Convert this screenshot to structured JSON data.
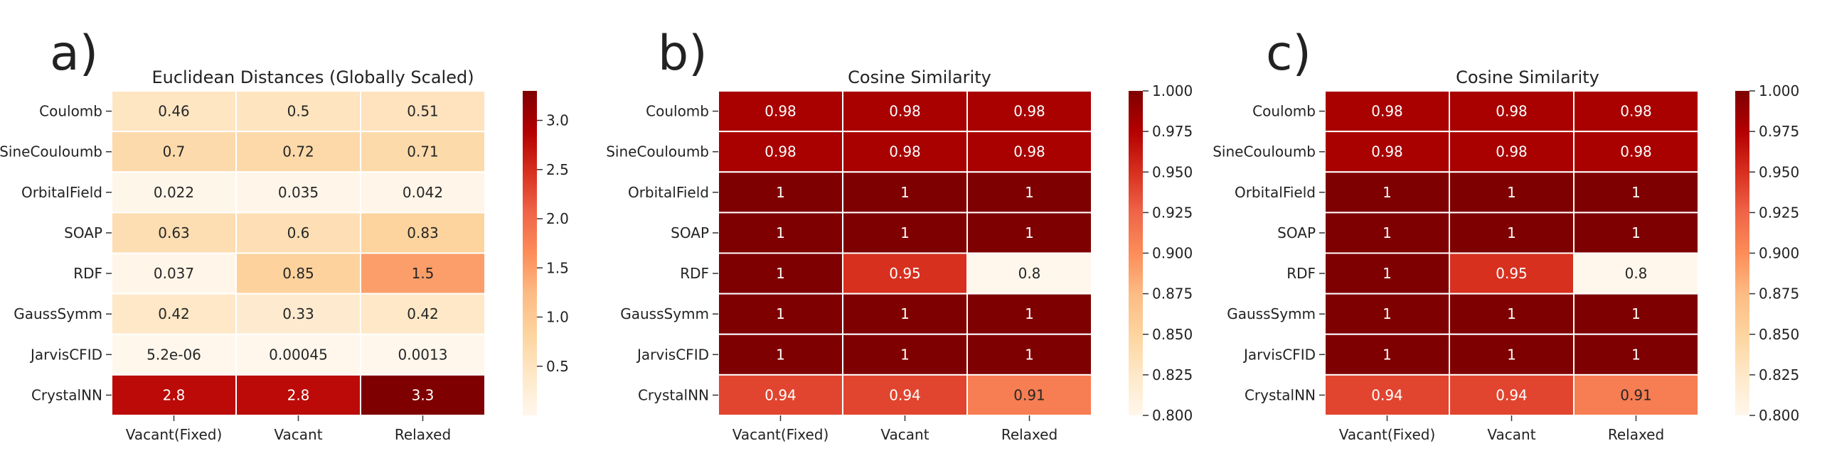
{
  "chart_data": [
    {
      "type": "heatmap",
      "panel_label": "a)",
      "title": "Euclidean Distances (Globally Scaled)",
      "rows": [
        "Coulomb",
        "SineCouloumb",
        "OrbitalField",
        "SOAP",
        "RDF",
        "GaussSymm",
        "JarvisCFID",
        "CrystalNN"
      ],
      "columns": [
        "Vacant(Fixed)",
        "Vacant",
        "Relaxed"
      ],
      "values": [
        [
          0.46,
          0.5,
          0.51
        ],
        [
          0.7,
          0.72,
          0.71
        ],
        [
          0.022,
          0.035,
          0.042
        ],
        [
          0.63,
          0.6,
          0.83
        ],
        [
          0.037,
          0.85,
          1.5
        ],
        [
          0.42,
          0.33,
          0.42
        ],
        [
          5.2e-06,
          0.00045,
          0.0013
        ],
        [
          2.8,
          2.8,
          3.3
        ]
      ],
      "labels": [
        [
          "0.46",
          "0.5",
          "0.51"
        ],
        [
          "0.7",
          "0.72",
          "0.71"
        ],
        [
          "0.022",
          "0.035",
          "0.042"
        ],
        [
          "0.63",
          "0.6",
          "0.83"
        ],
        [
          "0.037",
          "0.85",
          "1.5"
        ],
        [
          "0.42",
          "0.33",
          "0.42"
        ],
        [
          "5.2e-06",
          "0.00045",
          "0.0013"
        ],
        [
          "2.8",
          "2.8",
          "3.3"
        ]
      ],
      "colorbar": {
        "vmin": 0,
        "vmax": 3.3,
        "ticks": [
          0.5,
          1.0,
          1.5,
          2.0,
          2.5,
          3.0
        ],
        "tick_labels": [
          "0.5",
          "1.0",
          "1.5",
          "2.0",
          "2.5",
          "3.0"
        ],
        "colormap": "OrRd"
      }
    },
    {
      "type": "heatmap",
      "panel_label": "b)",
      "title": "Cosine Similarity",
      "rows": [
        "Coulomb",
        "SineCouloumb",
        "OrbitalField",
        "SOAP",
        "RDF",
        "GaussSymm",
        "JarvisCFID",
        "CrystalNN"
      ],
      "columns": [
        "Vacant(Fixed)",
        "Vacant",
        "Relaxed"
      ],
      "values": [
        [
          0.98,
          0.98,
          0.98
        ],
        [
          0.98,
          0.98,
          0.98
        ],
        [
          1,
          1,
          1
        ],
        [
          1,
          1,
          1
        ],
        [
          1,
          0.95,
          0.8
        ],
        [
          1,
          1,
          1
        ],
        [
          1,
          1,
          1
        ],
        [
          0.94,
          0.94,
          0.91
        ]
      ],
      "labels": [
        [
          "0.98",
          "0.98",
          "0.98"
        ],
        [
          "0.98",
          "0.98",
          "0.98"
        ],
        [
          "1",
          "1",
          "1"
        ],
        [
          "1",
          "1",
          "1"
        ],
        [
          "1",
          "0.95",
          "0.8"
        ],
        [
          "1",
          "1",
          "1"
        ],
        [
          "1",
          "1",
          "1"
        ],
        [
          "0.94",
          "0.94",
          "0.91"
        ]
      ],
      "colorbar": {
        "vmin": 0.8,
        "vmax": 1.0,
        "ticks": [
          0.8,
          0.825,
          0.85,
          0.875,
          0.9,
          0.925,
          0.95,
          0.975,
          1.0
        ],
        "tick_labels": [
          "0.800",
          "0.825",
          "0.850",
          "0.875",
          "0.900",
          "0.925",
          "0.950",
          "0.975",
          "1.000"
        ],
        "colormap": "OrRd"
      }
    },
    {
      "type": "heatmap",
      "panel_label": "c)",
      "title": "Cosine Similarity",
      "rows": [
        "Coulomb",
        "SineCouloumb",
        "OrbitalField",
        "SOAP",
        "RDF",
        "GaussSymm",
        "JarvisCFID",
        "CrystalNN"
      ],
      "columns": [
        "Vacant(Fixed)",
        "Vacant",
        "Relaxed"
      ],
      "values": [
        [
          0.98,
          0.98,
          0.98
        ],
        [
          0.98,
          0.98,
          0.98
        ],
        [
          1,
          1,
          1
        ],
        [
          1,
          1,
          1
        ],
        [
          1,
          0.95,
          0.8
        ],
        [
          1,
          1,
          1
        ],
        [
          1,
          1,
          1
        ],
        [
          0.94,
          0.94,
          0.91
        ]
      ],
      "labels": [
        [
          "0.98",
          "0.98",
          "0.98"
        ],
        [
          "0.98",
          "0.98",
          "0.98"
        ],
        [
          "1",
          "1",
          "1"
        ],
        [
          "1",
          "1",
          "1"
        ],
        [
          "1",
          "0.95",
          "0.8"
        ],
        [
          "1",
          "1",
          "1"
        ],
        [
          "1",
          "1",
          "1"
        ],
        [
          "0.94",
          "0.94",
          "0.91"
        ]
      ],
      "colorbar": {
        "vmin": 0.8,
        "vmax": 1.0,
        "ticks": [
          0.8,
          0.825,
          0.85,
          0.875,
          0.9,
          0.925,
          0.95,
          0.975,
          1.0
        ],
        "tick_labels": [
          "0.800",
          "0.825",
          "0.850",
          "0.875",
          "0.900",
          "0.925",
          "0.950",
          "0.975",
          "1.000"
        ],
        "colormap": "OrRd"
      }
    }
  ]
}
